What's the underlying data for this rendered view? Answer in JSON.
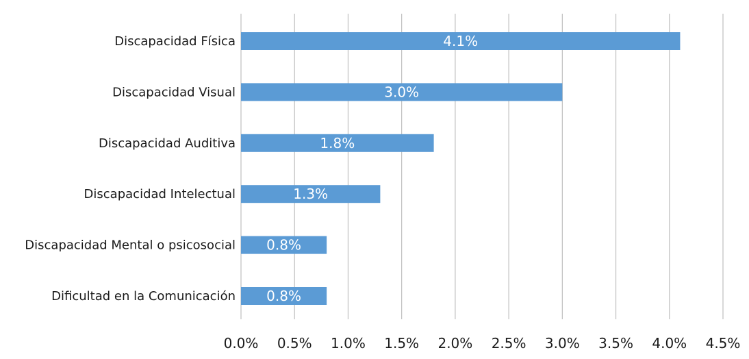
{
  "chart_data": {
    "type": "bar",
    "orientation": "horizontal",
    "categories": [
      "Discapacidad Física",
      "Discapacidad Visual",
      "Discapacidad Auditiva",
      "Discapacidad Intelectual",
      "Discapacidad Mental o psicosocial",
      "Dificultad en la Comunicación"
    ],
    "values": [
      4.1,
      3.0,
      1.8,
      1.3,
      0.8,
      0.8
    ],
    "data_labels": [
      "4.1%",
      "3.0%",
      "1.8%",
      "1.3%",
      "0.8%",
      "0.8%"
    ],
    "xlim": [
      0,
      4.5
    ],
    "x_ticks": [
      0,
      0.5,
      1.0,
      1.5,
      2.0,
      2.5,
      3.0,
      3.5,
      4.0,
      4.5
    ],
    "x_tick_labels": [
      "0.0%",
      "0.5%",
      "1.0%",
      "1.5%",
      "2.0%",
      "2.5%",
      "3.0%",
      "3.5%",
      "4.0%",
      "4.5%"
    ],
    "grid": "vertical",
    "legend": "none",
    "bar_color": "#5b9bd5",
    "title": "",
    "xlabel": "",
    "ylabel": ""
  }
}
